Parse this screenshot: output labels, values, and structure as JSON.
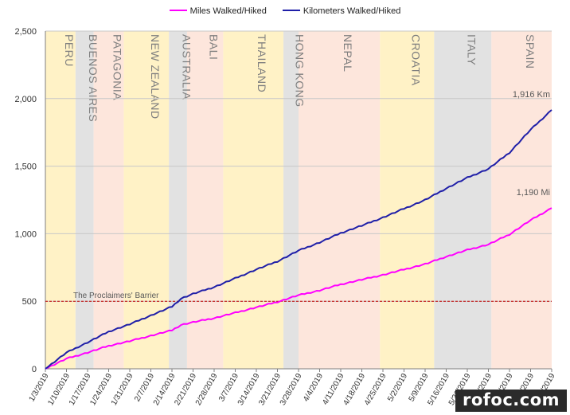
{
  "chart_data": {
    "type": "line",
    "x_unit": "date",
    "xlim": [
      "2019-01-03",
      "2019-06-20"
    ],
    "ylim": [
      0,
      2500
    ],
    "yticks": [
      0,
      500,
      1000,
      1500,
      2000,
      2500
    ],
    "ytick_labels": [
      "0",
      "500",
      "1,000",
      "1,500",
      "2,000",
      "2,500"
    ],
    "xtick_labels": [
      "1/3/2019",
      "1/10/2019",
      "1/17/2019",
      "1/24/2019",
      "1/31/2019",
      "2/7/2019",
      "2/14/2019",
      "2/21/2019",
      "2/28/2019",
      "3/7/2019",
      "3/14/2019",
      "3/21/2019",
      "3/28/2019",
      "4/4/2019",
      "4/11/2019",
      "4/18/2019",
      "4/25/2019",
      "5/2/2019",
      "5/9/2019",
      "5/16/2019",
      "5/23/2019",
      "5/30/2019",
      "6/6/2019",
      "6/13/2019",
      "6/20/2019"
    ],
    "grid": true,
    "legend_position": "top",
    "series": [
      {
        "name": "Miles Walked/Hiked",
        "color": "#ff00ff",
        "x": [
          "2019-01-03",
          "2019-01-10",
          "2019-01-17",
          "2019-01-24",
          "2019-01-31",
          "2019-02-07",
          "2019-02-14",
          "2019-02-17",
          "2019-02-21",
          "2019-02-28",
          "2019-03-07",
          "2019-03-14",
          "2019-03-21",
          "2019-03-28",
          "2019-04-04",
          "2019-04-11",
          "2019-04-18",
          "2019-04-25",
          "2019-05-02",
          "2019-05-09",
          "2019-05-16",
          "2019-05-23",
          "2019-05-30",
          "2019-06-06",
          "2019-06-13",
          "2019-06-20"
        ],
        "values": [
          0,
          75,
          120,
          170,
          205,
          245,
          285,
          325,
          345,
          375,
          415,
          455,
          495,
          545,
          580,
          625,
          660,
          695,
          735,
          775,
          830,
          880,
          920,
          995,
          1100,
          1190
        ]
      },
      {
        "name": "Kilometers Walked/Hiked",
        "color": "#1f1fa8",
        "x": [
          "2019-01-03",
          "2019-01-10",
          "2019-01-17",
          "2019-01-24",
          "2019-01-31",
          "2019-02-07",
          "2019-02-14",
          "2019-02-17",
          "2019-02-21",
          "2019-02-28",
          "2019-03-07",
          "2019-03-14",
          "2019-03-21",
          "2019-03-28",
          "2019-04-04",
          "2019-04-11",
          "2019-04-18",
          "2019-04-25",
          "2019-05-02",
          "2019-05-09",
          "2019-05-16",
          "2019-05-23",
          "2019-05-30",
          "2019-06-06",
          "2019-06-13",
          "2019-06-20"
        ],
        "values": [
          0,
          120,
          195,
          275,
          330,
          395,
          460,
          520,
          555,
          605,
          670,
          735,
          795,
          875,
          935,
          1005,
          1060,
          1120,
          1185,
          1250,
          1335,
          1415,
          1480,
          1600,
          1770,
          1916
        ]
      }
    ],
    "regions": [
      {
        "label": "PERU",
        "start": "2019-01-03",
        "end": "2019-01-13",
        "color": "#fff2c6"
      },
      {
        "label": "BUENOS AIRES",
        "start": "2019-01-13",
        "end": "2019-01-19",
        "color": "#e2e2e2"
      },
      {
        "label": "PATAGONIA",
        "start": "2019-01-19",
        "end": "2019-01-29",
        "color": "#fde6dc"
      },
      {
        "label": "NEW ZEALAND",
        "start": "2019-01-29",
        "end": "2019-02-13",
        "color": "#fff2c6"
      },
      {
        "label": "AUSTRALIA",
        "start": "2019-02-13",
        "end": "2019-02-19",
        "color": "#e2e2e2"
      },
      {
        "label": "BALI",
        "start": "2019-02-19",
        "end": "2019-03-03",
        "color": "#fde6dc"
      },
      {
        "label": "THAILAND",
        "start": "2019-03-03",
        "end": "2019-03-23",
        "color": "#fff2c6"
      },
      {
        "label": "HONG KONG",
        "start": "2019-03-23",
        "end": "2019-03-28",
        "color": "#e2e2e2"
      },
      {
        "label": "NEPAL",
        "start": "2019-03-28",
        "end": "2019-04-24",
        "color": "#fde6dc"
      },
      {
        "label": "CROATIA",
        "start": "2019-04-24",
        "end": "2019-05-12",
        "color": "#fff2c6"
      },
      {
        "label": "ITALY",
        "start": "2019-05-12",
        "end": "2019-05-31",
        "color": "#e2e2e2"
      },
      {
        "label": "SPAIN",
        "start": "2019-05-31",
        "end": "2019-06-20",
        "color": "#fde6dc"
      }
    ],
    "reference_line": {
      "label": "The Proclaimers' Barrier",
      "value": 500,
      "color": "#c00000"
    },
    "end_labels": [
      {
        "text": "1,916 Km",
        "series": "Kilometers Walked/Hiked"
      },
      {
        "text": "1,190 Mi",
        "series": "Miles Walked/Hiked"
      }
    ]
  },
  "watermark": "rofoc.com"
}
